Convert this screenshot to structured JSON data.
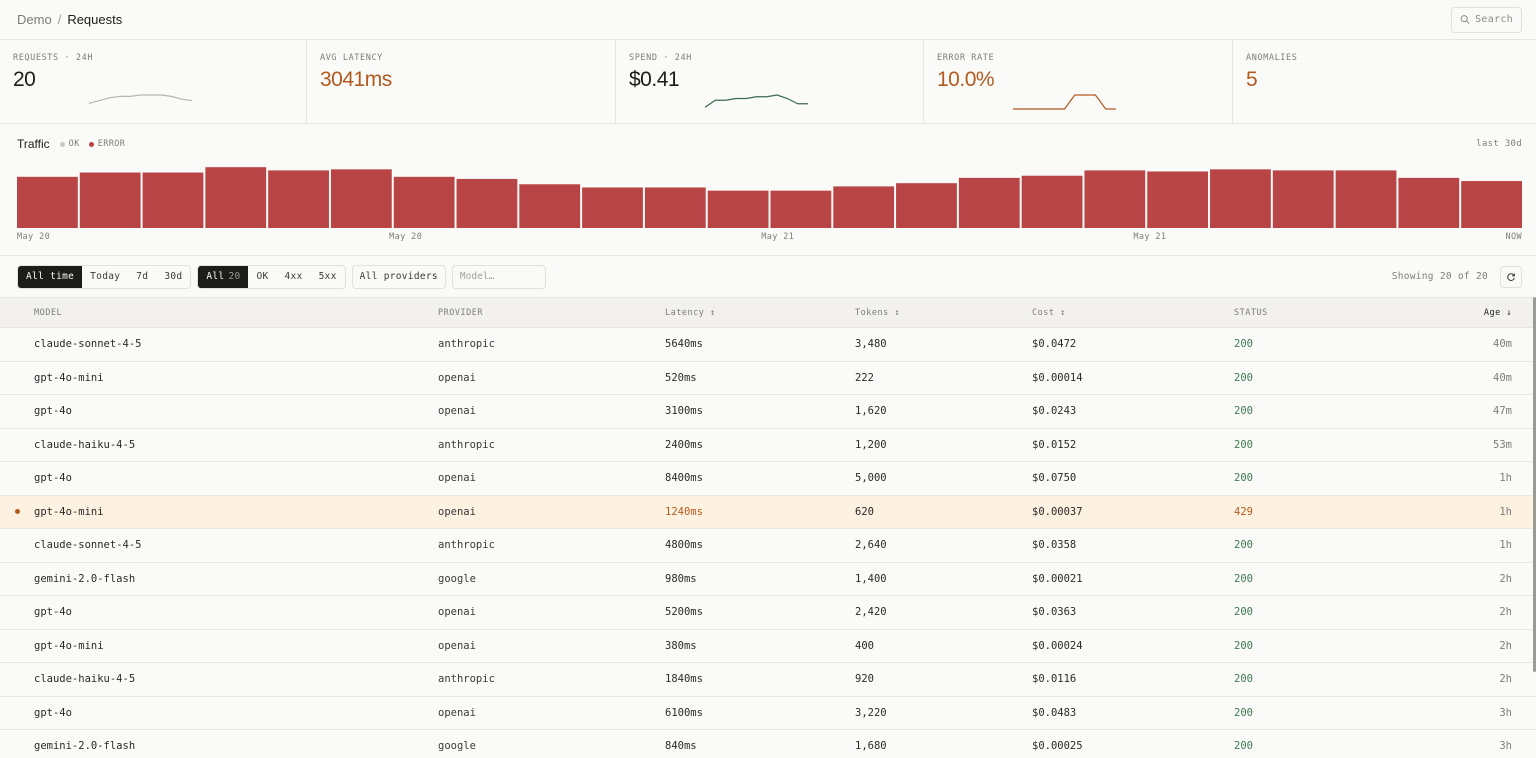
{
  "breadcrumb": {
    "parent": "Demo",
    "separator": "/",
    "current": "Requests"
  },
  "search": {
    "label": "Search"
  },
  "stats": [
    {
      "label": "REQUESTS · 24H",
      "value": "20",
      "warn": false,
      "sparkline": [
        4,
        6,
        8,
        9,
        9,
        10,
        10,
        10,
        9,
        7,
        6
      ]
    },
    {
      "label": "AVG LATENCY",
      "value": "3041ms",
      "warn": true
    },
    {
      "label": "SPEND · 24H",
      "value": "$0.41",
      "warn": false,
      "sparkline": [
        1,
        5,
        5,
        6,
        6,
        7,
        7,
        8,
        6,
        3,
        3
      ]
    },
    {
      "label": "ERROR RATE",
      "value": "10.0%",
      "warn": true,
      "sparkline": [
        0,
        0,
        0,
        0,
        0,
        0,
        8,
        8,
        8,
        0,
        0
      ]
    },
    {
      "label": "ANOMALIES",
      "value": "5",
      "warn": true
    }
  ],
  "colors": {
    "accent_warn": "#b35a1f",
    "status_ok": "#3f7a52",
    "bar_error": "#b84446",
    "ok_dot": "#c9c8c3",
    "err_dot": "#b84446",
    "spark_gray": "#b7b6b1",
    "spark_green": "#3d6a50",
    "spark_orange": "#b35a1f"
  },
  "traffic": {
    "title": "Traffic",
    "legend": [
      {
        "label": "OK",
        "color": "#c9c8c3"
      },
      {
        "label": "ERROR",
        "color": "#b84446"
      }
    ],
    "range": "last 30d",
    "x_labels": [
      "May 20",
      "May 20",
      "May 21",
      "May 21",
      "NOW"
    ]
  },
  "chart_data": {
    "type": "bar",
    "title": "Traffic",
    "series": [
      {
        "name": "ERROR",
        "values": [
          48,
          52,
          52,
          57,
          54,
          55,
          48,
          46,
          41,
          38,
          38,
          35,
          35,
          39,
          42,
          47,
          49,
          54,
          53,
          55,
          54,
          54,
          47,
          44
        ]
      }
    ],
    "ylim": [
      0,
      60
    ],
    "xlabel": "",
    "ylabel": ""
  },
  "filters": {
    "time": [
      {
        "label": "All time",
        "active": true
      },
      {
        "label": "Today"
      },
      {
        "label": "7d"
      },
      {
        "label": "30d"
      }
    ],
    "status": [
      {
        "label": "All",
        "count": "20",
        "active": true
      },
      {
        "label": "OK"
      },
      {
        "label": "4xx"
      },
      {
        "label": "5xx"
      }
    ],
    "provider": "All providers",
    "model_placeholder": "Model…",
    "showing": "Showing 20 of 20"
  },
  "table": {
    "headers": {
      "model": "MODEL",
      "provider": "PROVIDER",
      "latency": "Latency ↕",
      "tokens": "Tokens ↕",
      "cost": "Cost ↕",
      "status": "STATUS",
      "age": "Age ↓"
    },
    "rows": [
      {
        "model": "claude-sonnet-4-5",
        "provider": "anthropic",
        "latency": "5640ms",
        "tokens": "3,480",
        "cost": "$0.0472",
        "status": "200",
        "age": "40m"
      },
      {
        "model": "gpt-4o-mini",
        "provider": "openai",
        "latency": "520ms",
        "tokens": "222",
        "cost": "$0.00014",
        "status": "200",
        "age": "40m"
      },
      {
        "model": "gpt-4o",
        "provider": "openai",
        "latency": "3100ms",
        "tokens": "1,620",
        "cost": "$0.0243",
        "status": "200",
        "age": "47m"
      },
      {
        "model": "claude-haiku-4-5",
        "provider": "anthropic",
        "latency": "2400ms",
        "tokens": "1,200",
        "cost": "$0.0152",
        "status": "200",
        "age": "53m"
      },
      {
        "model": "gpt-4o",
        "provider": "openai",
        "latency": "8400ms",
        "tokens": "5,000",
        "cost": "$0.0750",
        "status": "200",
        "age": "1h"
      },
      {
        "model": "gpt-4o-mini",
        "provider": "openai",
        "latency": "1240ms",
        "tokens": "620",
        "cost": "$0.00037",
        "status": "429",
        "age": "1h",
        "error": true
      },
      {
        "model": "claude-sonnet-4-5",
        "provider": "anthropic",
        "latency": "4800ms",
        "tokens": "2,640",
        "cost": "$0.0358",
        "status": "200",
        "age": "1h"
      },
      {
        "model": "gemini-2.0-flash",
        "provider": "google",
        "latency": "980ms",
        "tokens": "1,400",
        "cost": "$0.00021",
        "status": "200",
        "age": "2h"
      },
      {
        "model": "gpt-4o",
        "provider": "openai",
        "latency": "5200ms",
        "tokens": "2,420",
        "cost": "$0.0363",
        "status": "200",
        "age": "2h"
      },
      {
        "model": "gpt-4o-mini",
        "provider": "openai",
        "latency": "380ms",
        "tokens": "400",
        "cost": "$0.00024",
        "status": "200",
        "age": "2h"
      },
      {
        "model": "claude-haiku-4-5",
        "provider": "anthropic",
        "latency": "1840ms",
        "tokens": "920",
        "cost": "$0.0116",
        "status": "200",
        "age": "2h"
      },
      {
        "model": "gpt-4o",
        "provider": "openai",
        "latency": "6100ms",
        "tokens": "3,220",
        "cost": "$0.0483",
        "status": "200",
        "age": "3h"
      },
      {
        "model": "gemini-2.0-flash",
        "provider": "google",
        "latency": "840ms",
        "tokens": "1,680",
        "cost": "$0.00025",
        "status": "200",
        "age": "3h"
      }
    ]
  }
}
